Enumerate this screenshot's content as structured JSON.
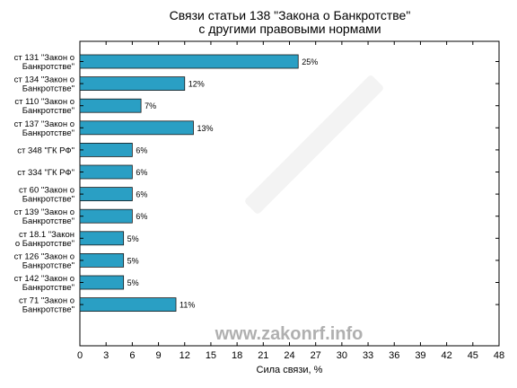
{
  "chart_data": {
    "type": "bar",
    "orientation": "horizontal",
    "title_lines": [
      "Связи статьи 138 \"Закона о Банкротстве\"",
      "с другими правовыми нормами"
    ],
    "xlabel": "Сила связи, %",
    "xlim": [
      0,
      48
    ],
    "xticks": [
      0,
      3,
      6,
      9,
      12,
      15,
      18,
      21,
      24,
      27,
      30,
      33,
      36,
      39,
      42,
      45,
      48
    ],
    "grid": false,
    "bar_color": "#2a9fc4",
    "categories": [
      [
        "ст 131 \"Закон о",
        "Банкротстве\""
      ],
      [
        "ст 134 \"Закон о",
        "Банкротстве\""
      ],
      [
        "ст 110 \"Закон о",
        "Банкротстве\""
      ],
      [
        "ст 137 \"Закон о",
        "Банкротстве\""
      ],
      [
        "ст 348 \"ГК РФ\""
      ],
      [
        "ст 334 \"ГК РФ\""
      ],
      [
        "ст 60 \"Закон о",
        "Банкротстве\""
      ],
      [
        "ст 139 \"Закон о",
        "Банкротстве\""
      ],
      [
        "ст 18.1 \"Закон",
        "о Банкротстве\""
      ],
      [
        "ст 126 \"Закон о",
        "Банкротстве\""
      ],
      [
        "ст 142 \"Закон о",
        "Банкротстве\""
      ],
      [
        "ст 71 \"Закон о",
        "Банкротстве\""
      ]
    ],
    "values": [
      25,
      12,
      7,
      13,
      6,
      6,
      6,
      6,
      5,
      5,
      5,
      11
    ],
    "value_labels": [
      "25%",
      "12%",
      "7%",
      "13%",
      "6%",
      "6%",
      "6%",
      "6%",
      "5%",
      "5%",
      "5%",
      "11%"
    ]
  },
  "watermark": "www.zakonrf.info"
}
